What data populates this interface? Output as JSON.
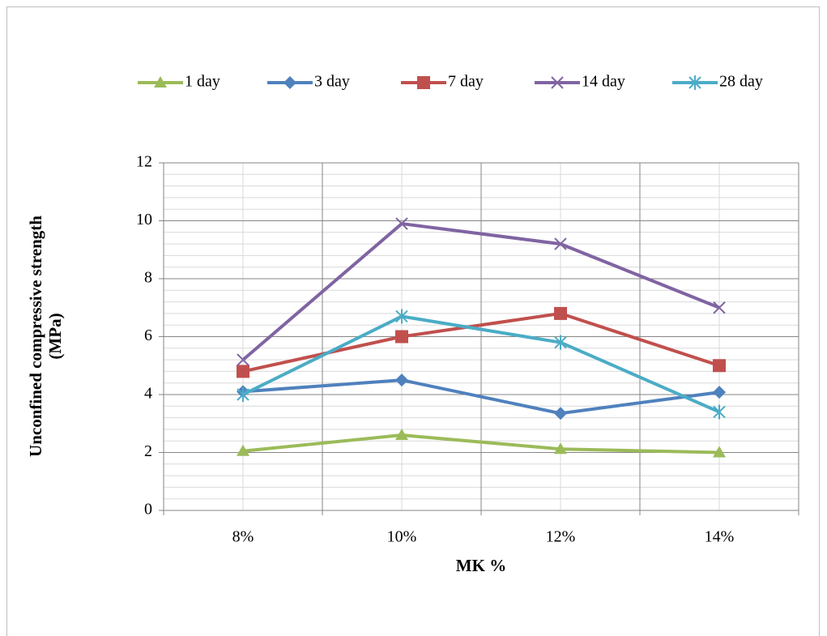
{
  "chart_data": {
    "type": "line",
    "x_label": "MK %",
    "y_label": [
      "Unconfined compressive strength",
      "(MPa)"
    ],
    "categories": [
      "8%",
      "10%",
      "12%",
      "14%"
    ],
    "series": [
      {
        "name": "1 day",
        "color": "#9bbb59",
        "values": [
          2.05,
          2.6,
          2.12,
          2.0
        ]
      },
      {
        "name": "3 day",
        "color": "#4f81bd",
        "values": [
          4.1,
          4.5,
          3.35,
          4.08
        ]
      },
      {
        "name": "7 day",
        "color": "#c0504d",
        "values": [
          4.8,
          6.0,
          6.8,
          5.0
        ]
      },
      {
        "name": "14 day",
        "color": "#8064a2",
        "values": [
          5.2,
          9.9,
          9.2,
          7.0
        ]
      },
      {
        "name": "28 day",
        "color": "#4bacc6",
        "values": [
          4.0,
          6.7,
          5.8,
          3.4
        ]
      }
    ],
    "ylim": [
      0,
      12
    ],
    "yticks": [
      0,
      2,
      4,
      6,
      8,
      10,
      12
    ],
    "grid": true,
    "legend": "top"
  }
}
